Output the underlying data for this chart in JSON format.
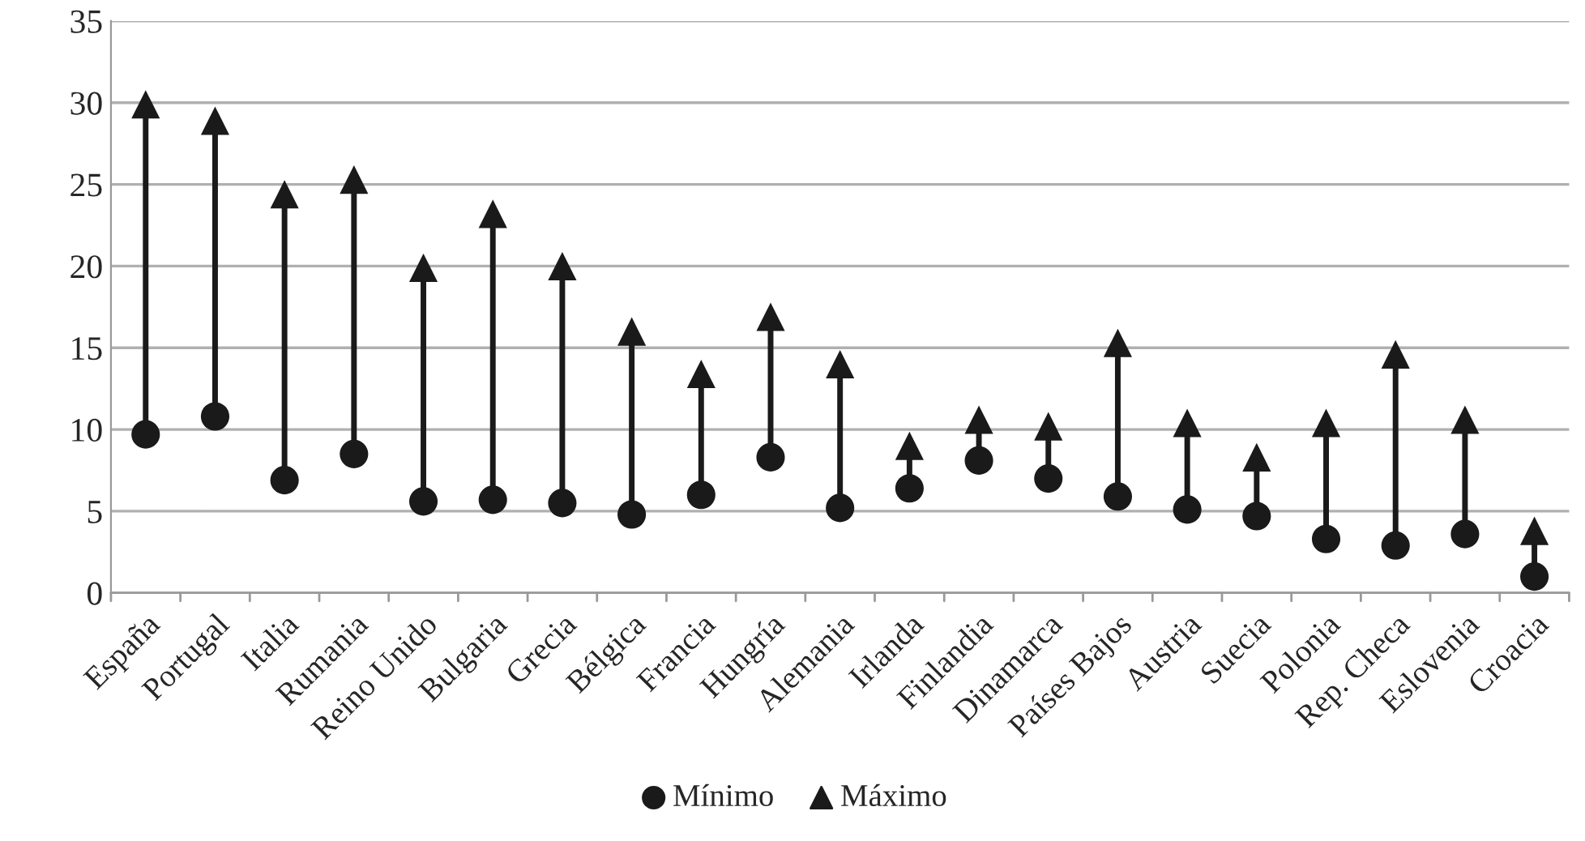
{
  "chart_data": {
    "type": "scatter",
    "categories": [
      "España",
      "Portugal",
      "Italia",
      "Rumania",
      "Reino Unido",
      "Bulgaria",
      "Grecia",
      "Bélgica",
      "Francia",
      "Hungría",
      "Alemania",
      "Irlanda",
      "Finlandia",
      "Dinamarca",
      "Países Bajos",
      "Austria",
      "Suecia",
      "Polonia",
      "Rep. Checa",
      "Eslovenia",
      "Croacia"
    ],
    "series": [
      {
        "name": "Mínimo",
        "color": "#1a1a1a",
        "marker": "circle",
        "values": [
          9.7,
          10.8,
          6.9,
          8.5,
          5.6,
          5.7,
          5.5,
          4.8,
          6.0,
          8.3,
          5.2,
          6.4,
          8.1,
          7.0,
          5.9,
          5.1,
          4.7,
          3.3,
          2.9,
          3.6,
          1.0
        ]
      },
      {
        "name": "Máximo",
        "color": "#1a1a1a",
        "marker": "triangle",
        "values": [
          29.9,
          28.9,
          24.4,
          25.3,
          19.9,
          23.2,
          20.0,
          16.0,
          13.4,
          16.9,
          14.0,
          9.0,
          10.6,
          10.2,
          15.3,
          10.4,
          8.3,
          10.4,
          14.6,
          10.6,
          3.8
        ]
      }
    ],
    "ylim": [
      0,
      35
    ],
    "yticks": [
      0,
      5,
      10,
      15,
      20,
      25,
      30,
      35
    ],
    "grid": "y",
    "legend": "bottom"
  }
}
